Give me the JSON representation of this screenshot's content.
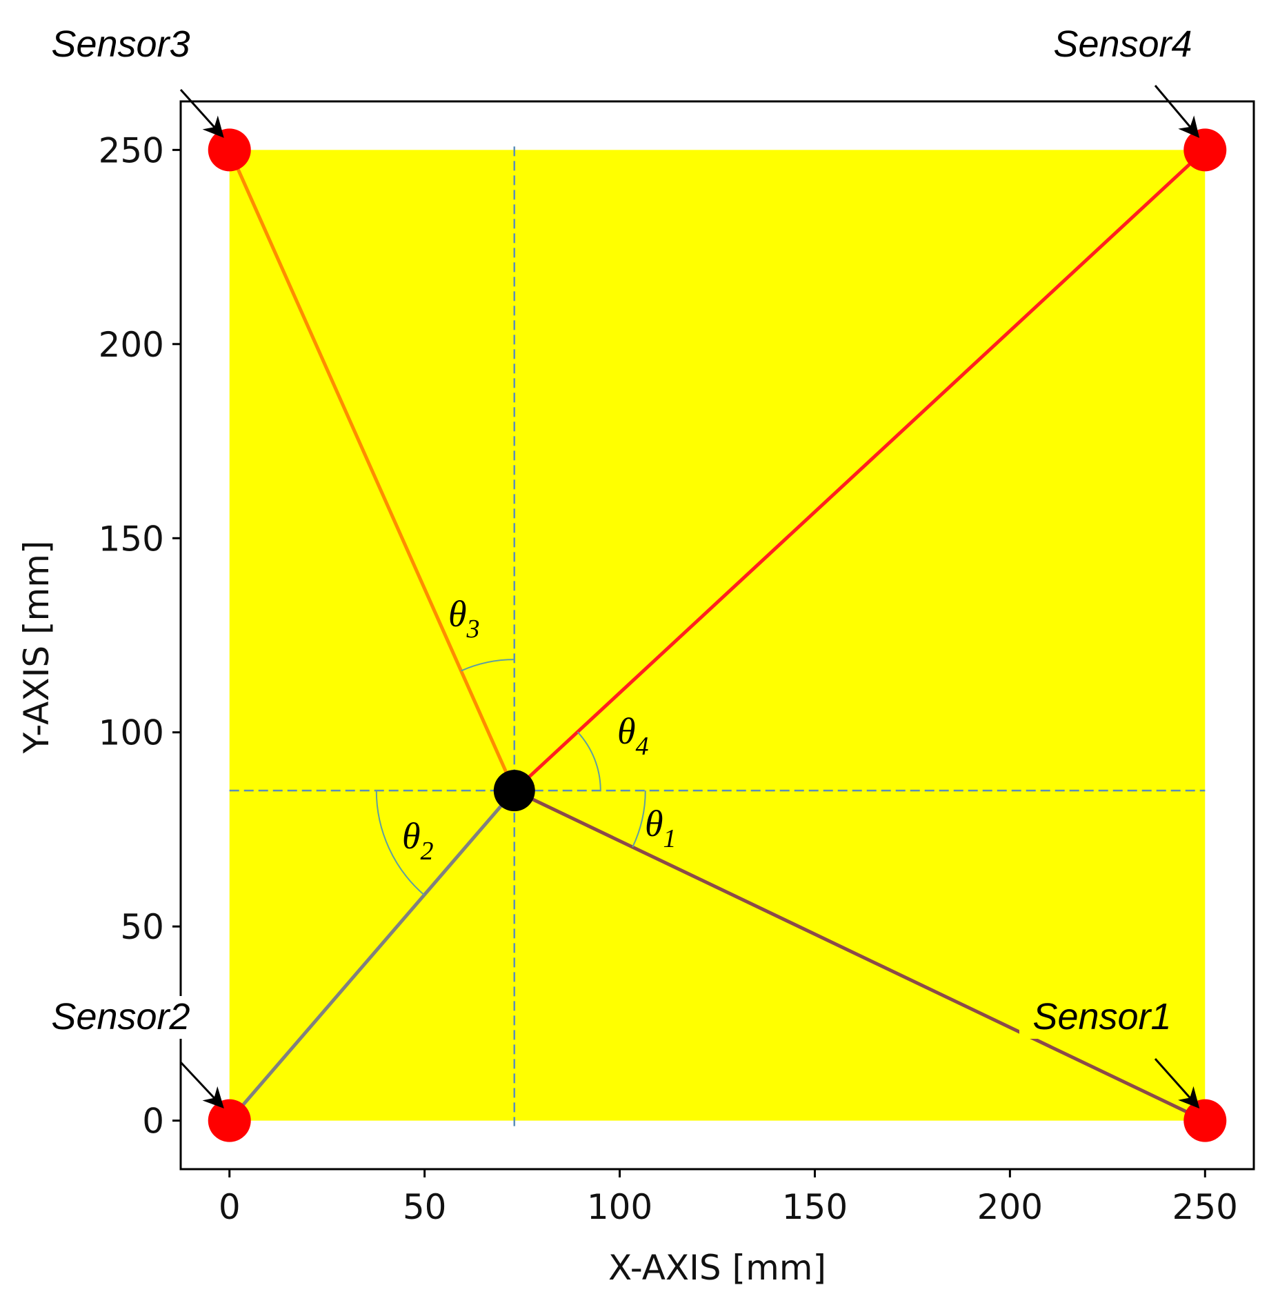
{
  "chart_data": {
    "type": "scatter",
    "xlabel": "X-AXIS [mm]",
    "ylabel": "Y-AXIS [mm]",
    "xlim": [
      -12.5,
      262.5
    ],
    "ylim": [
      -12.5,
      262.5
    ],
    "xticks": [
      0,
      50,
      100,
      150,
      200,
      250
    ],
    "yticks": [
      0,
      50,
      100,
      150,
      200,
      250
    ],
    "grid": false,
    "colors": {
      "region": "#ffff00",
      "sensor": "#ff0000",
      "source": "#000000",
      "guide": "#5b8fb9",
      "arc": "#5f9ea0",
      "line_sensor1": "#8b4a4a",
      "line_sensor2": "#808080",
      "line_sensor3": "#ff8c00",
      "line_sensor4": "#ff2020"
    },
    "region": {
      "x": [
        0,
        250
      ],
      "y": [
        0,
        250
      ]
    },
    "source": {
      "x": 73,
      "y": 85
    },
    "sensors": [
      {
        "label": "Sensor1",
        "x": 250,
        "y": 0
      },
      {
        "label": "Sensor2",
        "x": 0,
        "y": 0
      },
      {
        "label": "Sensor3",
        "x": 0,
        "y": 250
      },
      {
        "label": "Sensor4",
        "x": 250,
        "y": 250
      }
    ],
    "angles": [
      {
        "symbol": "θ",
        "sub": "1"
      },
      {
        "symbol": "θ",
        "sub": "2"
      },
      {
        "symbol": "θ",
        "sub": "3"
      },
      {
        "symbol": "θ",
        "sub": "4"
      }
    ]
  }
}
